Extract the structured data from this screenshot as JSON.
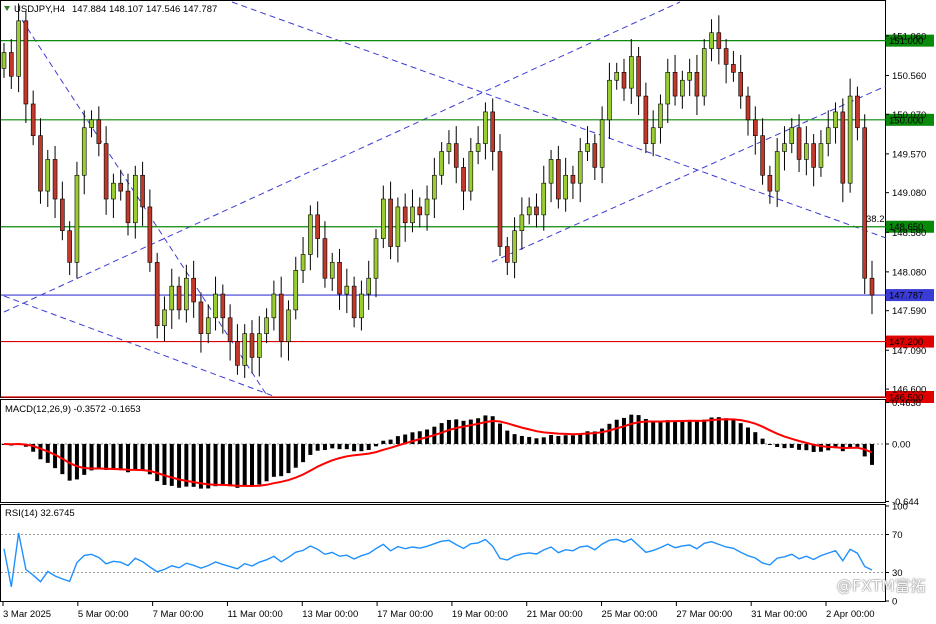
{
  "header": {
    "symbol": "USDJPY,H4",
    "ohlc": "147.884 148.107 147.546 147.787"
  },
  "chart_data": {
    "type": "candlestick",
    "symbol": "USDJPY",
    "timeframe": "H4",
    "price_axis": {
      "ylim": [
        146.5,
        151.45
      ],
      "ticks": [
        "151.060",
        "150.560",
        "150.070",
        "149.570",
        "149.080",
        "148.580",
        "148.080",
        "147.590",
        "147.090",
        "146.600"
      ]
    },
    "x_ticks": [
      "3 Mar 2025",
      "5 Mar 00:00",
      "7 Mar 00:00",
      "11 Mar 00:00",
      "13 Mar 00:00",
      "17 Mar 00:00",
      "19 Mar 00:00",
      "21 Mar 00:00",
      "25 Mar 00:00",
      "27 Mar 00:00",
      "31 Mar 00:00",
      "2 Apr 00:00"
    ],
    "candles_close": [
      150.85,
      150.55,
      151.25,
      150.2,
      149.8,
      149.1,
      149.5,
      149.0,
      148.6,
      148.2,
      149.3,
      149.9,
      150.0,
      149.7,
      149.0,
      149.2,
      149.1,
      148.7,
      149.3,
      148.9,
      148.2,
      147.4,
      147.6,
      147.9,
      147.6,
      148.0,
      147.7,
      147.3,
      147.5,
      147.8,
      147.5,
      147.2,
      146.9,
      147.3,
      147.0,
      147.3,
      147.5,
      147.8,
      147.2,
      147.6,
      148.1,
      148.3,
      148.8,
      148.5,
      148.0,
      148.2,
      147.8,
      147.9,
      147.5,
      147.8,
      148.0,
      148.5,
      149.0,
      148.4,
      148.9,
      148.7,
      148.9,
      148.8,
      149.0,
      149.3,
      149.6,
      149.7,
      149.4,
      149.1,
      149.6,
      149.7,
      150.1,
      149.6,
      148.4,
      148.2,
      148.6,
      148.8,
      148.9,
      148.8,
      149.2,
      149.5,
      149.0,
      149.3,
      149.2,
      149.6,
      149.7,
      149.4,
      150.0,
      150.5,
      150.6,
      150.4,
      150.8,
      150.3,
      149.7,
      149.9,
      150.2,
      150.6,
      150.3,
      150.5,
      150.6,
      150.3,
      150.9,
      151.1,
      150.9,
      150.7,
      150.6,
      150.3,
      150.0,
      149.8,
      149.3,
      149.1,
      149.6,
      149.7,
      149.9,
      149.5,
      149.7,
      149.4,
      149.7,
      149.9,
      150.1,
      149.2,
      150.3,
      149.9,
      148.0,
      147.787
    ],
    "horizontal_levels": [
      {
        "price": 151.0,
        "label": "151.000",
        "color": "#0a8a0a"
      },
      {
        "price": 150.0,
        "label": "150.000",
        "color": "#0a8a0a"
      },
      {
        "price": 148.65,
        "label": "148.650",
        "color": "#0a8a0a"
      },
      {
        "price": 147.787,
        "label": "147.787",
        "color": "#3b3bd6"
      },
      {
        "price": 147.2,
        "label": "147.200",
        "color": "#e00000"
      },
      {
        "price": 146.5,
        "label": "146.500",
        "color": "#e00000"
      }
    ],
    "fib_label": "38.2",
    "macd": {
      "title": "MACD(12,26,9) -0.3572 -0.1653",
      "params": "12,26,9",
      "ticks": [
        "0.4638",
        "0.00",
        "-0.644"
      ],
      "ylim": [
        -0.65,
        0.47
      ],
      "signal_color": "#ff0000",
      "histogram_color": "#000000"
    },
    "rsi": {
      "title": "RSI(14) 32.6745",
      "period": 14,
      "ticks": [
        "100",
        "70",
        "30",
        "0"
      ],
      "ylim": [
        0,
        100
      ],
      "line_color": "#1e90ff"
    },
    "colors": {
      "bull": "#9acd32",
      "bear": "#c0392b",
      "trend": "#3b3bd6",
      "wick": "#000000"
    },
    "grid": false
  },
  "watermark": "@FXTM富拓"
}
